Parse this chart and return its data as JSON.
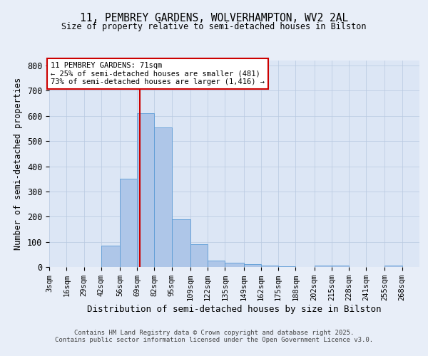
{
  "title1": "11, PEMBREY GARDENS, WOLVERHAMPTON, WV2 2AL",
  "title2": "Size of property relative to semi-detached houses in Bilston",
  "xlabel": "Distribution of semi-detached houses by size in Bilston",
  "ylabel": "Number of semi-detached properties",
  "bin_labels": [
    "3sqm",
    "16sqm",
    "29sqm",
    "42sqm",
    "56sqm",
    "69sqm",
    "82sqm",
    "95sqm",
    "109sqm",
    "122sqm",
    "135sqm",
    "149sqm",
    "162sqm",
    "175sqm",
    "188sqm",
    "202sqm",
    "215sqm",
    "228sqm",
    "241sqm",
    "255sqm",
    "268sqm"
  ],
  "bin_edges": [
    3,
    16,
    29,
    42,
    56,
    69,
    82,
    95,
    109,
    122,
    135,
    149,
    162,
    175,
    188,
    202,
    215,
    228,
    241,
    255,
    268
  ],
  "bar_heights": [
    0,
    0,
    0,
    85,
    350,
    610,
    555,
    190,
    90,
    25,
    17,
    12,
    5,
    2,
    0,
    7,
    5,
    0,
    0,
    5
  ],
  "bar_color": "#aec6e8",
  "bar_edge_color": "#5b9bd5",
  "property_size": 71,
  "property_label": "11 PEMBREY GARDENS: 71sqm",
  "pct_smaller": 25,
  "pct_larger": 73,
  "count_smaller": 481,
  "count_larger": 1416,
  "vline_color": "#cc0000",
  "annotation_box_color": "#cc0000",
  "ylim": [
    0,
    820
  ],
  "yticks": [
    0,
    100,
    200,
    300,
    400,
    500,
    600,
    700,
    800
  ],
  "footer1": "Contains HM Land Registry data © Crown copyright and database right 2025.",
  "footer2": "Contains public sector information licensed under the Open Government Licence v3.0.",
  "background_color": "#e8eef8",
  "plot_background": "#dce6f5"
}
